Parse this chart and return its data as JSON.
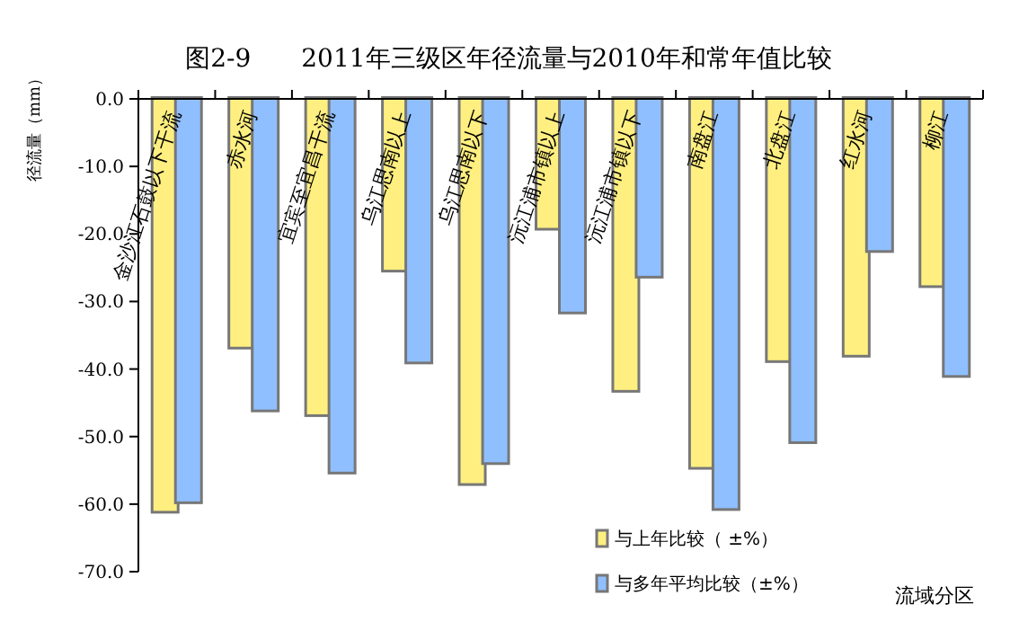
{
  "chart_data": {
    "type": "bar",
    "title": "图2-9　　2011年三级区年径流量与2010年和常年值比较",
    "xlabel": "流域分区",
    "ylabel": "径流量（mm）",
    "categories": [
      "金沙江石鼓以下干流",
      "赤水河",
      "宜宾至宜昌干流",
      "乌江思南以上",
      "乌江思南以下",
      "沅江浦市镇以上",
      "沅江浦市镇以下",
      "南盘江",
      "北盘江",
      "红水河",
      "柳江"
    ],
    "series": [
      {
        "name": "与上年比较（ ±%）",
        "color": "#ffef80",
        "values": [
          -61.0,
          -36.7,
          -46.7,
          -25.3,
          -56.9,
          -19.1,
          -43.1,
          -54.5,
          -38.7,
          -37.9,
          -27.6
        ]
      },
      {
        "name": "与多年平均比较（±%）",
        "color": "#8fbfff",
        "values": [
          -59.6,
          -46.0,
          -55.2,
          -38.9,
          -53.8,
          -31.5,
          -26.2,
          -60.6,
          -50.7,
          -22.4,
          -40.9
        ]
      }
    ],
    "ylim": [
      -70,
      0
    ],
    "yticks": [
      {
        "value": 0,
        "label": "0.0"
      },
      {
        "value": -10,
        "label": "-10.0"
      },
      {
        "value": -20,
        "label": "-20.0"
      },
      {
        "value": -30,
        "label": "-30.0"
      },
      {
        "value": -40,
        "label": "-40.0"
      },
      {
        "value": -50,
        "label": "-50.0"
      },
      {
        "value": -60,
        "label": "-60.0"
      },
      {
        "value": -70,
        "label": "-70.0"
      }
    ],
    "grid": false,
    "legend": "bottom right"
  }
}
